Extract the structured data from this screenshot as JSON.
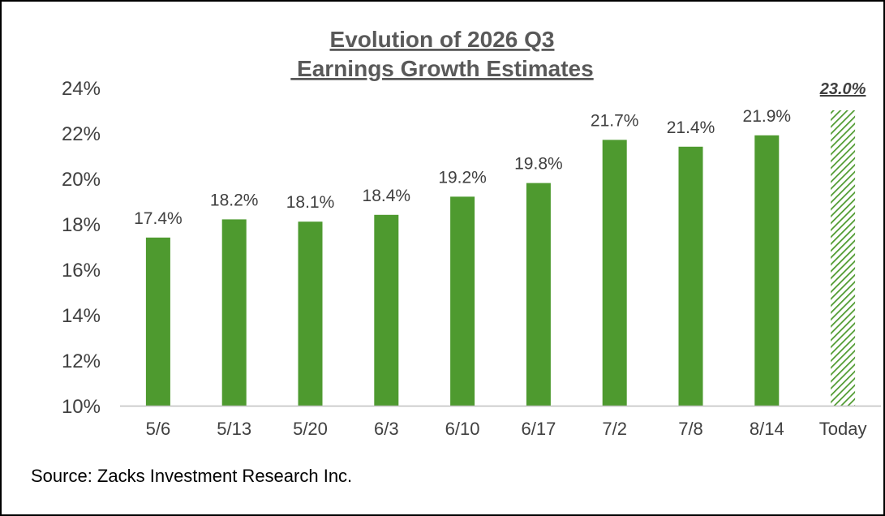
{
  "chart_data": {
    "type": "bar",
    "title": "Evolution of 2026 Q3",
    "subtitle": " Earnings Growth Estimates",
    "categories": [
      "5/6",
      "5/13",
      "5/20",
      "6/3",
      "6/10",
      "6/17",
      "7/2",
      "7/8",
      "8/14",
      "Today"
    ],
    "values": [
      17.4,
      18.2,
      18.1,
      18.4,
      19.2,
      19.8,
      21.7,
      21.4,
      21.9,
      23.0
    ],
    "value_labels": [
      "17.4%",
      "18.2%",
      "18.1%",
      "18.4%",
      "19.2%",
      "19.8%",
      "21.7%",
      "21.4%",
      "21.9%",
      "23.0%"
    ],
    "yticks": [
      "10%",
      "12%",
      "14%",
      "16%",
      "18%",
      "20%",
      "22%",
      "24%"
    ],
    "ylim": [
      10,
      24
    ],
    "xlabel": "",
    "ylabel": "",
    "grid": false,
    "highlight_last": "hatched",
    "colors": {
      "bar": "#4E9A2F",
      "axis": "#BFBFBF",
      "text": "#404040",
      "title": "#595959"
    }
  },
  "source": "Source: Zacks Investment Research Inc."
}
